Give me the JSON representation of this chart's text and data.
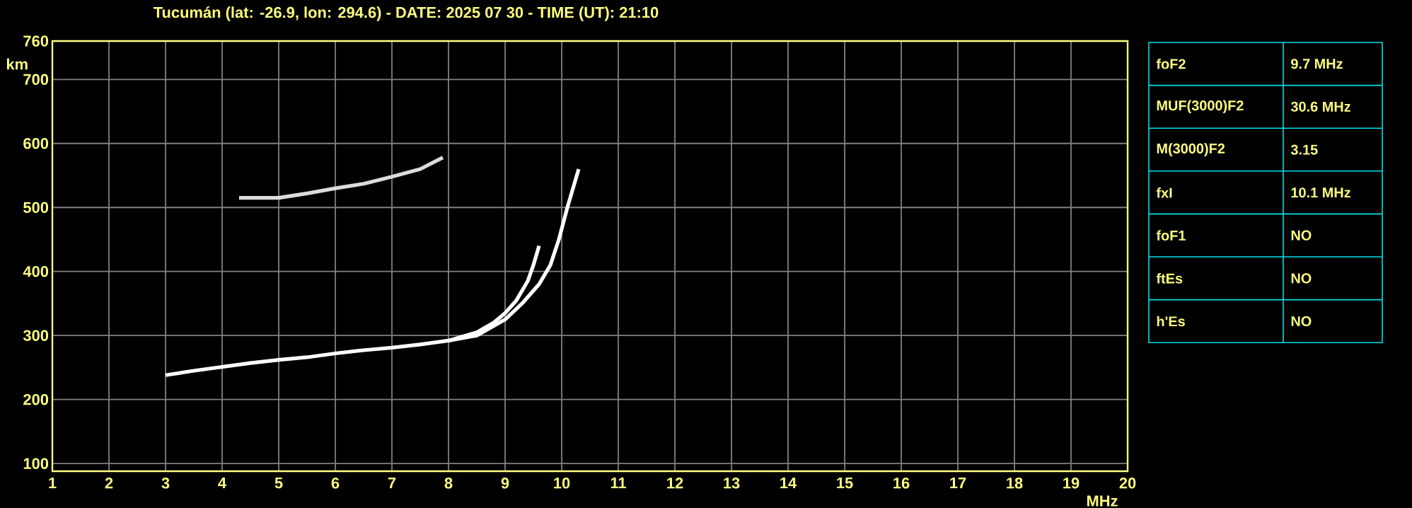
{
  "chart_data": [
    {
      "type": "line",
      "title": "Tucumán (lat: -26.9, lon: 294.6) - DATE: 2025 07 30 - TIME (UT): 21:10",
      "xlabel": "MHz",
      "ylabel": "km",
      "xlim": [
        1,
        20
      ],
      "ylim": [
        88,
        760
      ],
      "xticks": [
        1,
        2,
        3,
        4,
        5,
        6,
        7,
        8,
        9,
        10,
        11,
        12,
        13,
        14,
        15,
        16,
        17,
        18,
        19,
        20
      ],
      "yticks": [
        100,
        200,
        300,
        400,
        500,
        600,
        700,
        760
      ],
      "grid": true,
      "series": [
        {
          "color": "#ffffff",
          "x": [
            3.0,
            3.5,
            4.0,
            4.5,
            5.0,
            5.5,
            6.0,
            6.5,
            7.0,
            7.5,
            8.0,
            8.5,
            8.8,
            9.0,
            9.2,
            9.4,
            9.5,
            9.6
          ],
          "values": [
            238,
            245,
            251,
            257,
            262,
            266,
            272,
            277,
            281,
            286,
            292,
            305,
            320,
            335,
            355,
            385,
            410,
            440
          ]
        },
        {
          "color": "#ffffff",
          "x": [
            8.0,
            8.5,
            9.0,
            9.3,
            9.6,
            9.8,
            9.95,
            10.1,
            10.3
          ],
          "values": [
            292,
            300,
            325,
            350,
            380,
            410,
            450,
            500,
            560
          ]
        },
        {
          "color": "#dcdcdc",
          "x": [
            4.3,
            5.0,
            5.5,
            6.0,
            6.5,
            7.0,
            7.5,
            7.9
          ],
          "values": [
            515,
            515,
            522,
            530,
            537,
            548,
            560,
            578
          ]
        }
      ]
    },
    {
      "type": "other",
      "annotations": [
        "foF2",
        "9.7 MHz",
        "MUF(3000)F2",
        "30.6 MHz",
        "M(3000)F2",
        "3.15",
        "fxI",
        "10.1 MHz",
        "foF1",
        "NO",
        "ftEs",
        "NO",
        "h'Es",
        "NO"
      ]
    }
  ]
}
